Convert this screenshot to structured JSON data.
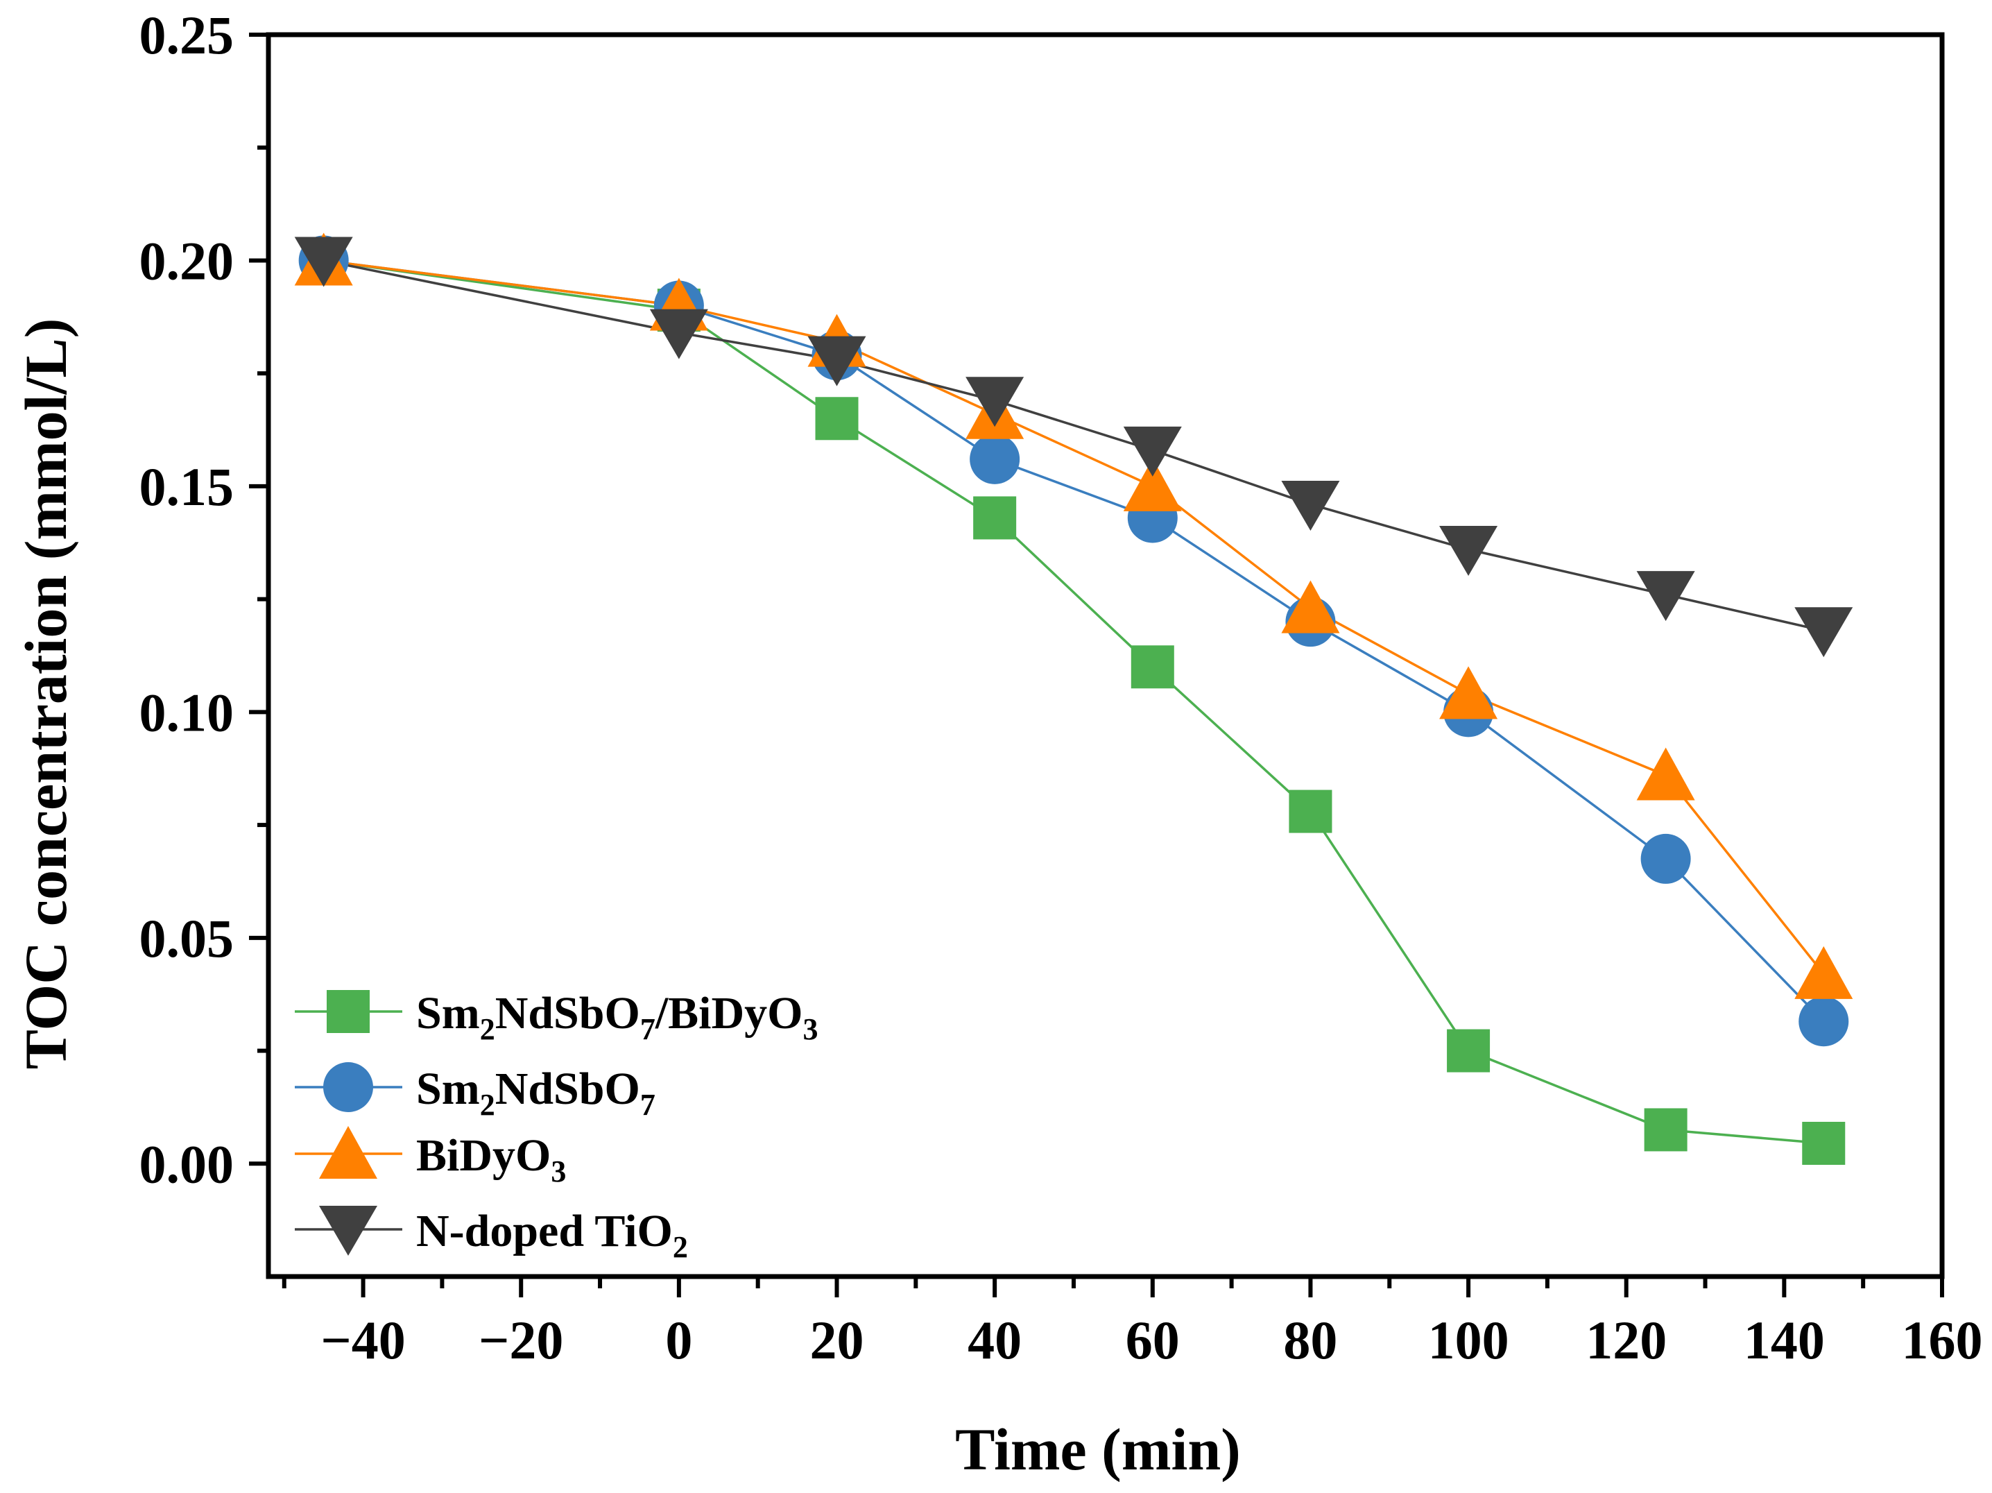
{
  "chart_data": {
    "type": "line",
    "title": "",
    "xlabel": "Time (min)",
    "ylabel": "TOC concentration (mmol/L)",
    "xlim": [
      -52,
      160
    ],
    "ylim": [
      -0.025,
      0.25
    ],
    "x_ticks": [
      -40,
      -20,
      0,
      20,
      40,
      60,
      80,
      100,
      120,
      140,
      160
    ],
    "x_tick_labels": [
      "−40",
      "−20",
      "0",
      "20",
      "40",
      "60",
      "80",
      "100",
      "120",
      "140",
      "160"
    ],
    "y_ticks": [
      0.0,
      0.05,
      0.1,
      0.15,
      0.2,
      0.25
    ],
    "y_tick_labels": [
      "0.00",
      "0.05",
      "0.10",
      "0.15",
      "0.20",
      "0.25"
    ],
    "grid": false,
    "legend_position": "bottom-left",
    "x": [
      -45,
      0,
      20,
      40,
      60,
      80,
      100,
      125,
      145
    ],
    "series": [
      {
        "name": "Sm2NdSbO7/BiDyO3",
        "label_parts": [
          {
            "t": "Sm",
            "sub": false
          },
          {
            "t": "2",
            "sub": true
          },
          {
            "t": "NdSbO",
            "sub": false
          },
          {
            "t": "7",
            "sub": true
          },
          {
            "t": "/BiDyO",
            "sub": false
          },
          {
            "t": "3",
            "sub": true
          }
        ],
        "marker": "square",
        "color": "#4cb050",
        "line_color": "#4cb050",
        "values": [
          0.2,
          0.189,
          0.165,
          0.143,
          0.11,
          0.078,
          0.025,
          0.0075,
          0.0045
        ]
      },
      {
        "name": "Sm2NdSbO7",
        "label_parts": [
          {
            "t": "Sm",
            "sub": false
          },
          {
            "t": "2",
            "sub": true
          },
          {
            "t": "NdSbO",
            "sub": false
          },
          {
            "t": "7",
            "sub": true
          }
        ],
        "marker": "circle",
        "color": "#3a7ebf",
        "line_color": "#3a7ebf",
        "values": [
          0.2,
          0.19,
          0.179,
          0.156,
          0.143,
          0.12,
          0.1,
          0.0675,
          0.0315
        ]
      },
      {
        "name": "BiDyO3",
        "label_parts": [
          {
            "t": "BiDyO",
            "sub": false
          },
          {
            "t": "3",
            "sub": true
          }
        ],
        "marker": "triangle-up",
        "color": "#ff8000",
        "line_color": "#ff8000",
        "values": [
          0.2,
          0.19,
          0.182,
          0.166,
          0.15,
          0.123,
          0.104,
          0.086,
          0.042
        ]
      },
      {
        "name": "N-doped TiO2",
        "label_parts": [
          {
            "t": "N-doped TiO",
            "sub": false
          },
          {
            "t": "2",
            "sub": true
          }
        ],
        "marker": "triangle-down",
        "color": "#404040",
        "line_color": "#404040",
        "values": [
          0.2,
          0.184,
          0.178,
          0.169,
          0.158,
          0.146,
          0.136,
          0.126,
          0.118
        ]
      }
    ]
  }
}
